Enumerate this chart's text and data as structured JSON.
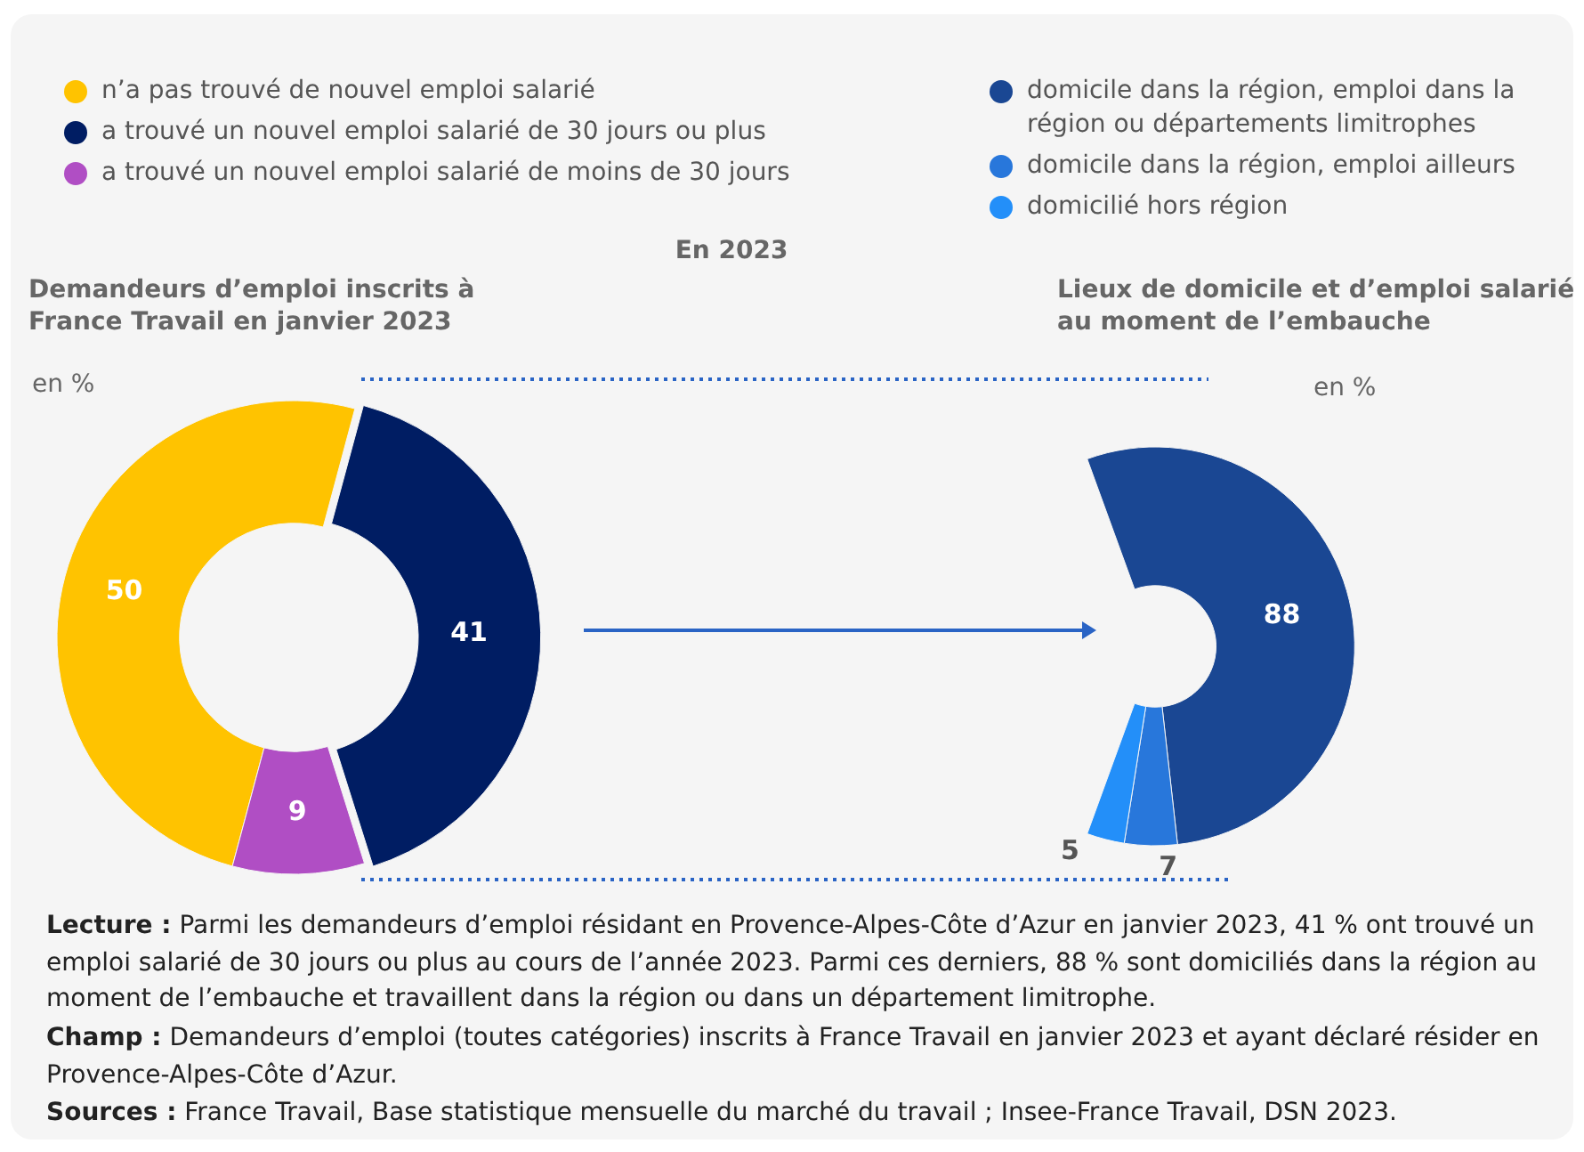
{
  "chart_data": [
    {
      "type": "donut",
      "title": "Demandeurs d’emploi inscrits à France Travail en janvier 2023",
      "categories": [
        "n’a pas trouvé de nouvel emploi salarié",
        "a trouvé un nouvel emploi salarié de 30 jours ou plus",
        "a trouvé un nouvel emploi salarié de moins de 30 jours"
      ],
      "values": [
        50,
        41,
        9
      ],
      "colors": [
        "#ffc300",
        "#001d63",
        "#b04ec4"
      ],
      "data_labels": true,
      "legend": "top",
      "annotations": [
        "en %",
        "En 2023"
      ]
    },
    {
      "type": "donut",
      "title": "Lieux de domicile et d’emploi salarié au moment de l’embauche",
      "categories": [
        "domicile dans la région, emploi dans la région ou départements limitrophes",
        "domicile dans la région, emploi ailleurs",
        "domicilié hors région"
      ],
      "values": [
        88,
        7,
        5
      ],
      "colors": [
        "#1a4793",
        "#2877db",
        "#238ff9"
      ],
      "data_labels": true,
      "legend": "top",
      "annotations": [
        "en %",
        "Lecture : Parmi les demandeurs d’emploi résidant en Provence-Alpes-Côte d’Azur en janvier 2023, 41 % ont trouvé un emploi salarié de 30 jours ou plus au cours de l’année 2023. Parmi ces derniers, 88 % sont domiciliés dans la région au moment de l’embauche et travaillent dans la région ou dans un département limitrophe.",
        "Champ : Demandeurs d’emploi (toutes catégories) inscrits à France Travail en janvier 2023 et ayant déclaré résider en Provence-Alpes-Côte d’Azur.",
        "Sources : France Travail, Base statistique mensuelle du marché du travail ; Insee-France Travail, DSN 2023."
      ]
    }
  ]
}
